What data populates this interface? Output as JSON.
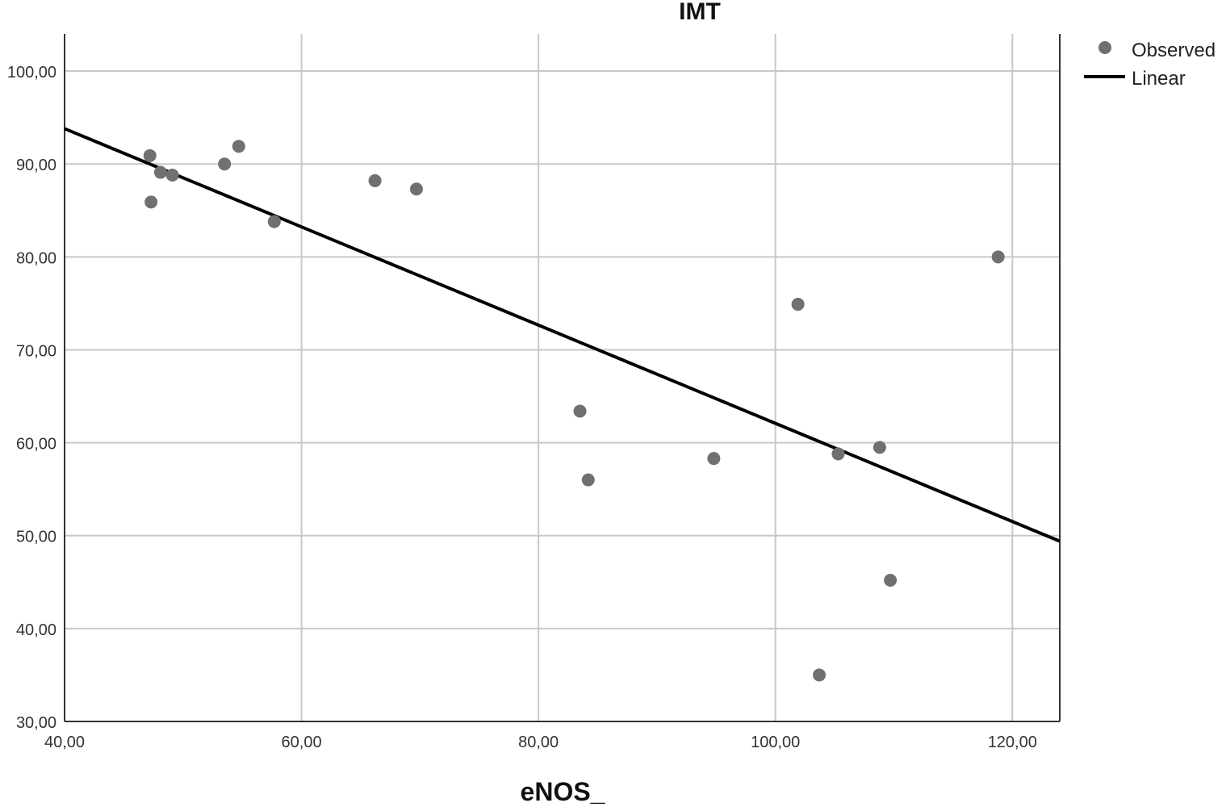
{
  "chart_data": {
    "type": "scatter",
    "title": "IMT",
    "xlabel": "eNOS_",
    "ylabel": "",
    "xlim": [
      40,
      124
    ],
    "ylim": [
      30,
      104
    ],
    "x_ticks": [
      40,
      60,
      80,
      100,
      120
    ],
    "x_tick_labels": [
      "40,00",
      "60,00",
      "80,00",
      "100,00",
      "120,00"
    ],
    "y_ticks": [
      30,
      40,
      50,
      60,
      70,
      80,
      90,
      100
    ],
    "y_tick_labels": [
      "30,00",
      "40,00",
      "50,00",
      "60,00",
      "70,00",
      "80,00",
      "90,00",
      "100,00"
    ],
    "grid": true,
    "legend_position": "top-right",
    "series": [
      {
        "name": "Observed",
        "kind": "points",
        "color": "#707070",
        "points": [
          {
            "x": 47.2,
            "y": 90.9
          },
          {
            "x": 47.3,
            "y": 85.9
          },
          {
            "x": 48.1,
            "y": 89.1
          },
          {
            "x": 49.1,
            "y": 88.8
          },
          {
            "x": 53.5,
            "y": 90.0
          },
          {
            "x": 54.7,
            "y": 91.9
          },
          {
            "x": 57.7,
            "y": 83.8
          },
          {
            "x": 66.2,
            "y": 88.2
          },
          {
            "x": 69.7,
            "y": 87.3
          },
          {
            "x": 83.5,
            "y": 63.4
          },
          {
            "x": 84.2,
            "y": 56.0
          },
          {
            "x": 94.8,
            "y": 58.3
          },
          {
            "x": 101.9,
            "y": 74.9
          },
          {
            "x": 103.7,
            "y": 35.0
          },
          {
            "x": 105.3,
            "y": 58.8
          },
          {
            "x": 108.8,
            "y": 59.5
          },
          {
            "x": 109.7,
            "y": 45.2
          },
          {
            "x": 118.8,
            "y": 80.0
          }
        ]
      },
      {
        "name": "Linear",
        "kind": "line",
        "color": "#000000",
        "x": [
          40,
          124
        ],
        "y": [
          93.8,
          49.4
        ]
      }
    ]
  }
}
